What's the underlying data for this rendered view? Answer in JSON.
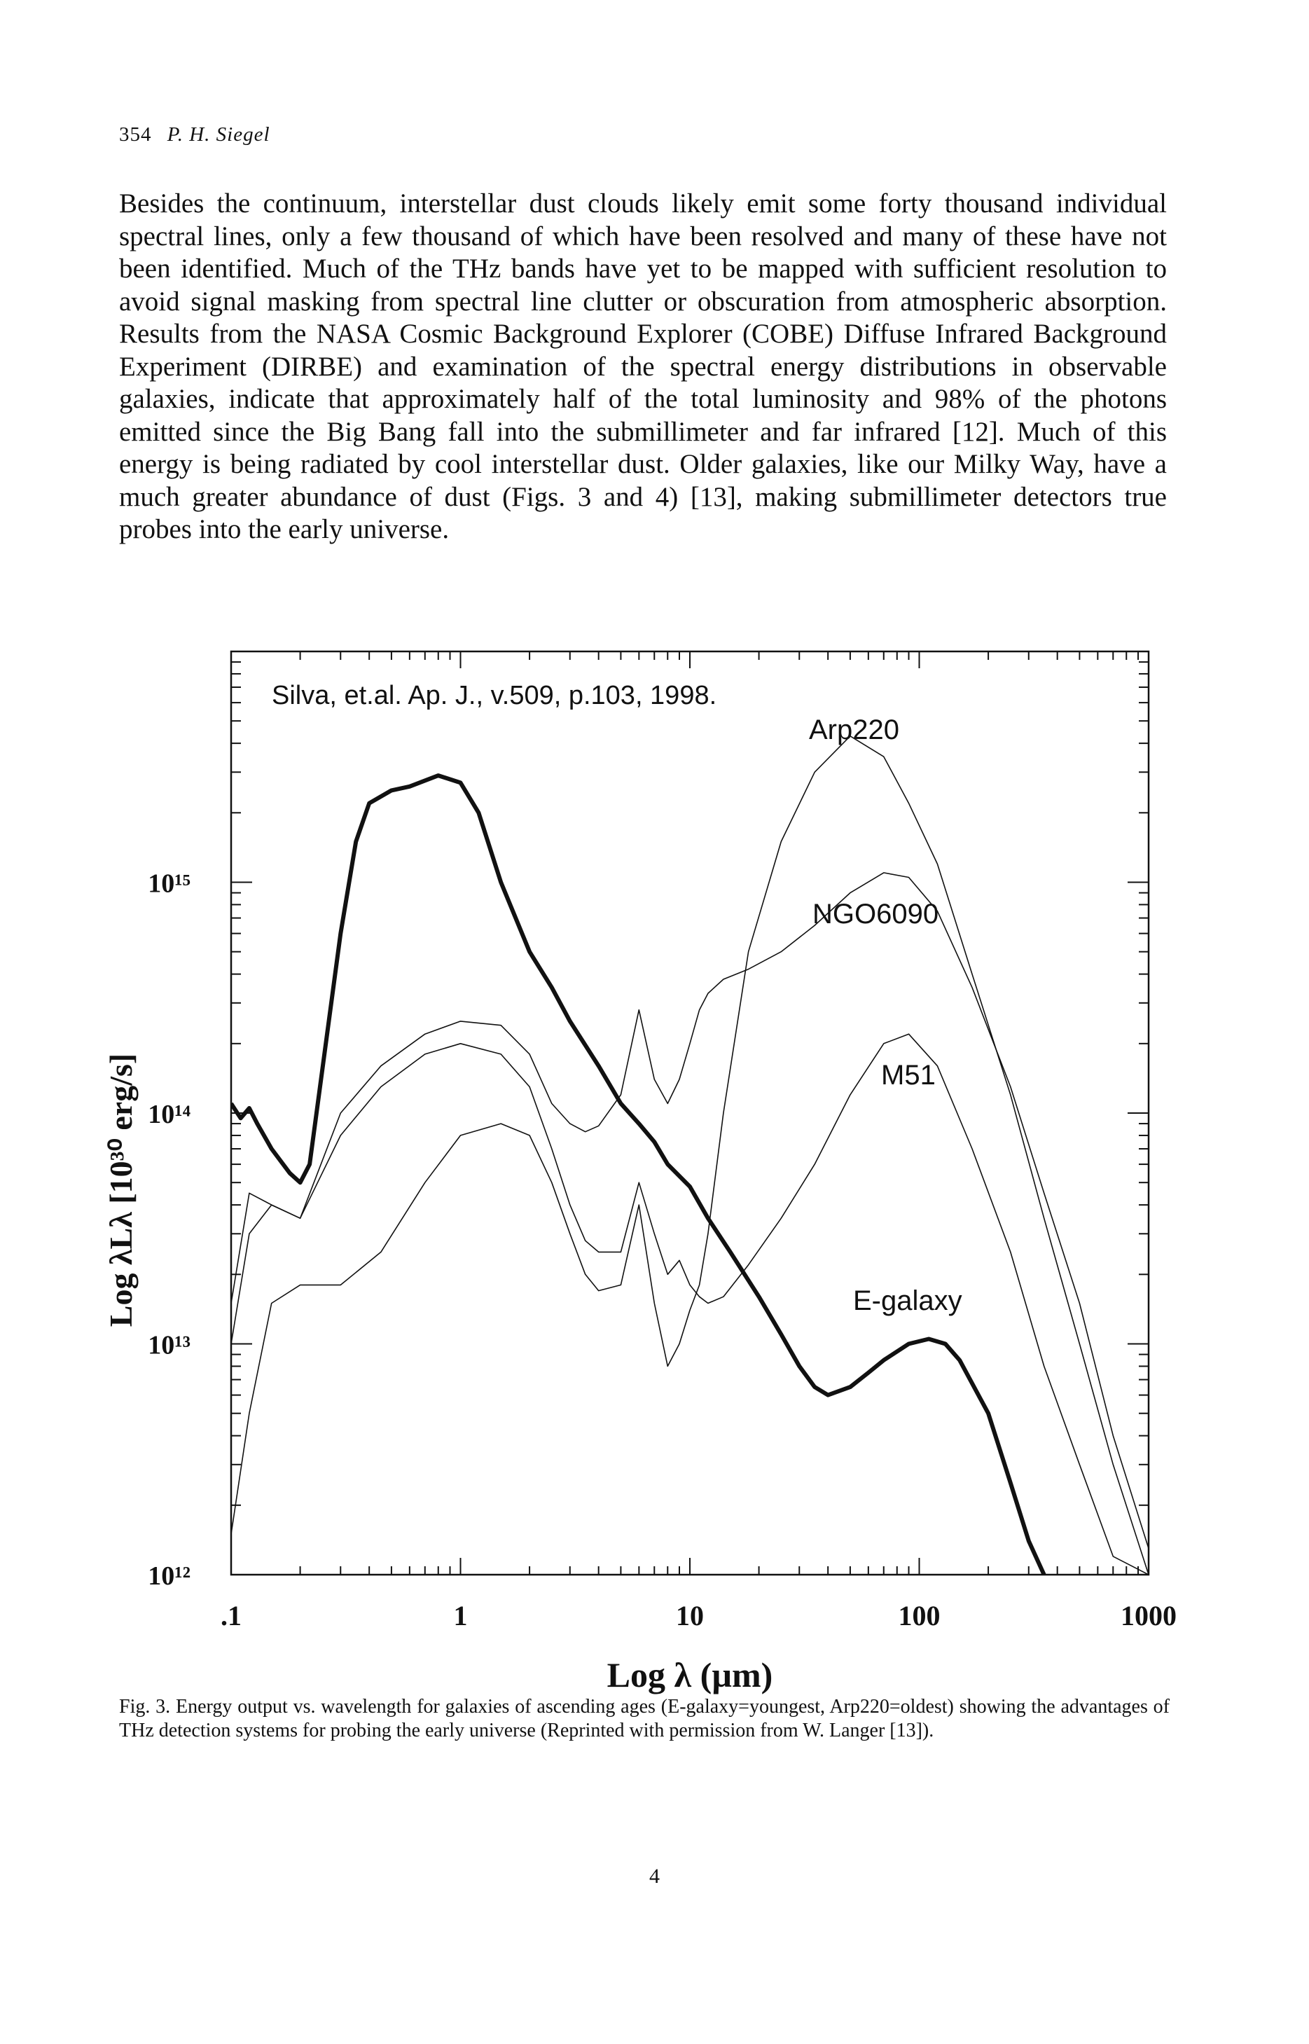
{
  "header": {
    "page_number": "354",
    "author": "P. H. Siegel"
  },
  "body": {
    "paragraph": "Besides the continuum, interstellar dust clouds likely emit some forty thousand individual spectral lines, only a few thousand of which have been resolved and many of these have not been identified. Much of the THz bands have yet to be mapped with sufficient resolution to avoid signal masking from spectral line clutter or obscuration from atmospheric absorption. Results from the NASA Cosmic Background Explorer (COBE) Diffuse Infrared Background Experiment (DIRBE) and examination of the spectral energy distributions in observable galaxies, indicate that approximately half of the total luminosity and 98% of the photons emitted since the Big Bang fall into the submillimeter and far infrared [12]. Much of this energy is being radiated by cool interstellar dust. Older galaxies, like our Milky Way, have a much greater abundance of dust (Figs. 3 and 4) [13], making submillimeter detectors true probes into the early universe."
  },
  "chart_data": {
    "type": "line",
    "title": "",
    "annotation": "Silva, et.al. Ap. J., v.509, p.103, 1998.",
    "xlabel": "Log λ (µm)",
    "ylabel": "Log λLλ [10³⁰ erg/s]",
    "xscale": "log",
    "yscale": "log",
    "xlim": [
      0.1,
      1000
    ],
    "ylim": [
      1000000000000.0,
      1e+16
    ],
    "x_tick_labels": [
      ".1",
      "1",
      "10",
      "100",
      "1000"
    ],
    "x_tick_values": [
      0.1,
      1,
      10,
      100,
      1000
    ],
    "y_tick_labels": [
      "10¹²",
      "10¹³",
      "10¹⁴",
      "10¹⁵"
    ],
    "y_tick_values": [
      1000000000000.0,
      10000000000000.0,
      100000000000000.0,
      1000000000000000.0
    ],
    "series": [
      {
        "name": "Arp220",
        "line": "thin",
        "x": [
          0.1,
          0.12,
          0.15,
          0.2,
          0.3,
          0.45,
          0.7,
          1.0,
          1.5,
          2.0,
          2.5,
          3.0,
          3.5,
          4.0,
          5.0,
          6.0,
          7.0,
          8.0,
          9.0,
          10,
          11,
          12,
          14,
          18,
          25,
          35,
          50,
          70,
          90,
          120,
          170,
          250,
          350,
          500,
          700,
          1000
        ],
        "y": [
          1500000000000.0,
          5000000000000.0,
          15000000000000.0,
          18000000000000.0,
          18000000000000.0,
          25000000000000.0,
          50000000000000.0,
          80000000000000.0,
          90000000000000.0,
          80000000000000.0,
          50000000000000.0,
          30000000000000.0,
          20000000000000.0,
          17000000000000.0,
          18000000000000.0,
          40000000000000.0,
          15000000000000.0,
          8000000000000.0,
          10000000000000.0,
          14000000000000.0,
          18000000000000.0,
          30000000000000.0,
          100000000000000.0,
          500000000000000.0,
          1500000000000000.0,
          3000000000000000.0,
          4300000000000000.0,
          3500000000000000.0,
          2200000000000000.0,
          1200000000000000.0,
          400000000000000.0,
          120000000000000.0,
          35000000000000.0,
          10000000000000.0,
          3000000000000.0,
          1000000000000.0
        ]
      },
      {
        "name": "NGO6090",
        "line": "thin",
        "x": [
          0.1,
          0.12,
          0.15,
          0.2,
          0.3,
          0.45,
          0.7,
          1.0,
          1.5,
          2.0,
          2.5,
          3.0,
          3.5,
          4.0,
          5.0,
          6.0,
          7.0,
          8.0,
          9.0,
          10,
          11,
          12,
          14,
          18,
          25,
          35,
          50,
          70,
          90,
          120,
          170,
          250,
          350,
          500,
          700,
          1000
        ],
        "y": [
          10000000000000.0,
          30000000000000.0,
          40000000000000.0,
          35000000000000.0,
          100000000000000.0,
          160000000000000.0,
          220000000000000.0,
          250000000000000.0,
          240000000000000.0,
          180000000000000.0,
          110000000000000.0,
          90000000000000.0,
          83000000000000.0,
          88000000000000.0,
          120000000000000.0,
          280000000000000.0,
          140000000000000.0,
          110000000000000.0,
          140000000000000.0,
          200000000000000.0,
          280000000000000.0,
          330000000000000.0,
          380000000000000.0,
          420000000000000.0,
          500000000000000.0,
          650000000000000.0,
          900000000000000.0,
          1100000000000000.0,
          1050000000000000.0,
          750000000000000.0,
          350000000000000.0,
          130000000000000.0,
          45000000000000.0,
          15000000000000.0,
          4000000000000.0,
          1300000000000.0
        ]
      },
      {
        "name": "M51",
        "line": "thin",
        "x": [
          0.1,
          0.12,
          0.15,
          0.2,
          0.3,
          0.45,
          0.7,
          1.0,
          1.5,
          2.0,
          2.5,
          3.0,
          3.5,
          4.0,
          5.0,
          6.0,
          7.0,
          8.0,
          9.0,
          10,
          11,
          12,
          14,
          18,
          25,
          35,
          50,
          70,
          90,
          120,
          170,
          250,
          350,
          500,
          700,
          1000
        ],
        "y": [
          15000000000000.0,
          45000000000000.0,
          40000000000000.0,
          35000000000000.0,
          80000000000000.0,
          130000000000000.0,
          180000000000000.0,
          200000000000000.0,
          180000000000000.0,
          130000000000000.0,
          70000000000000.0,
          40000000000000.0,
          28000000000000.0,
          25000000000000.0,
          25000000000000.0,
          50000000000000.0,
          30000000000000.0,
          20000000000000.0,
          23000000000000.0,
          18000000000000.0,
          16000000000000.0,
          15000000000000.0,
          16000000000000.0,
          22000000000000.0,
          35000000000000.0,
          60000000000000.0,
          120000000000000.0,
          200000000000000.0,
          220000000000000.0,
          160000000000000.0,
          70000000000000.0,
          25000000000000.0,
          8000000000000.0,
          3000000000000.0,
          1200000000000.0,
          1000000000000.0
        ]
      },
      {
        "name": "E-galaxy",
        "line": "thick",
        "x": [
          0.1,
          0.11,
          0.12,
          0.13,
          0.15,
          0.18,
          0.2,
          0.22,
          0.3,
          0.35,
          0.4,
          0.5,
          0.6,
          0.8,
          1.0,
          1.2,
          1.5,
          2.0,
          2.5,
          3.0,
          4.0,
          5.0,
          6.0,
          7.0,
          8.0,
          10,
          12,
          15,
          20,
          25,
          30,
          35,
          40,
          50,
          60,
          70,
          90,
          110,
          130,
          150,
          200,
          250,
          300,
          350
        ],
        "y": [
          110000000000000.0,
          95000000000000.0,
          105000000000000.0,
          90000000000000.0,
          70000000000000.0,
          55000000000000.0,
          50000000000000.0,
          60000000000000.0,
          600000000000000.0,
          1500000000000000.0,
          2200000000000000.0,
          2500000000000000.0,
          2600000000000000.0,
          2900000000000000.0,
          2700000000000000.0,
          2000000000000000.0,
          1000000000000000.0,
          500000000000000.0,
          350000000000000.0,
          250000000000000.0,
          160000000000000.0,
          110000000000000.0,
          90000000000000.0,
          75000000000000.0,
          60000000000000.0,
          48000000000000.0,
          35000000000000.0,
          25000000000000.0,
          16000000000000.0,
          11000000000000.0,
          8000000000000.0,
          6500000000000.0,
          6000000000000.0,
          6500000000000.0,
          7500000000000.0,
          8500000000000.0,
          10000000000000.0,
          10500000000000.0,
          10000000000000.0,
          8500000000000.0,
          5000000000000.0,
          2500000000000.0,
          1400000000000.0,
          1000000000000.0
        ]
      }
    ],
    "labels": [
      "Arp220",
      "NGO6090",
      "M51",
      "E-galaxy"
    ]
  },
  "caption": {
    "text": "Fig. 3. Energy output vs. wavelength for galaxies of ascending ages (E-galaxy=youngest, Arp220=oldest) showing the advantages of THz detection systems for probing the early universe (Reprinted with permission from W. Langer [13])."
  },
  "footer": {
    "page_number": "4"
  }
}
